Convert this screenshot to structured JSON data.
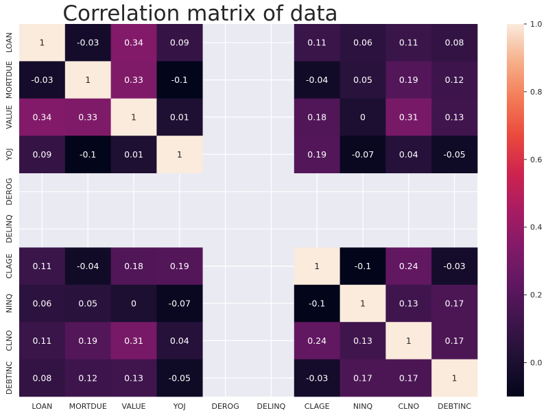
{
  "chart_data": {
    "type": "heatmap",
    "title": "Correlation matrix of data",
    "xlabel": "",
    "ylabel": "",
    "labels": [
      "LOAN",
      "MORTDUE",
      "VALUE",
      "YOJ",
      "DEROG",
      "DELINQ",
      "CLAGE",
      "NINQ",
      "CLNO",
      "DEBTINC"
    ],
    "matrix": [
      [
        1,
        -0.03,
        0.34,
        0.09,
        null,
        null,
        0.11,
        0.06,
        0.11,
        0.08
      ],
      [
        -0.03,
        1,
        0.33,
        -0.1,
        null,
        null,
        -0.04,
        0.05,
        0.19,
        0.12
      ],
      [
        0.34,
        0.33,
        1,
        0.01,
        null,
        null,
        0.18,
        0,
        0.31,
        0.13
      ],
      [
        0.09,
        -0.1,
        0.01,
        1,
        null,
        null,
        0.19,
        -0.07,
        0.04,
        -0.05
      ],
      [
        null,
        null,
        null,
        null,
        null,
        null,
        null,
        null,
        null,
        null
      ],
      [
        null,
        null,
        null,
        null,
        null,
        null,
        null,
        null,
        null,
        null
      ],
      [
        0.11,
        -0.04,
        0.18,
        0.19,
        null,
        null,
        1,
        -0.1,
        0.24,
        -0.03
      ],
      [
        0.06,
        0.05,
        0,
        -0.07,
        null,
        null,
        -0.1,
        1,
        0.13,
        0.17
      ],
      [
        0.11,
        0.19,
        0.31,
        0.04,
        null,
        null,
        0.24,
        0.13,
        1,
        0.17
      ],
      [
        0.08,
        0.12,
        0.13,
        -0.05,
        null,
        null,
        -0.03,
        0.17,
        0.17,
        1
      ]
    ],
    "colorbar": {
      "vmin": -0.1,
      "vmax": 1.0,
      "ticks": [
        1.0,
        0.8,
        0.6,
        0.4,
        0.2,
        0.0
      ],
      "tick_labels": [
        "1.0",
        "0.8",
        "0.6",
        "0.4",
        "0.2",
        "0.0"
      ],
      "colormap": "rocket"
    },
    "missing_color": "#eaeaf2",
    "grid": true
  }
}
